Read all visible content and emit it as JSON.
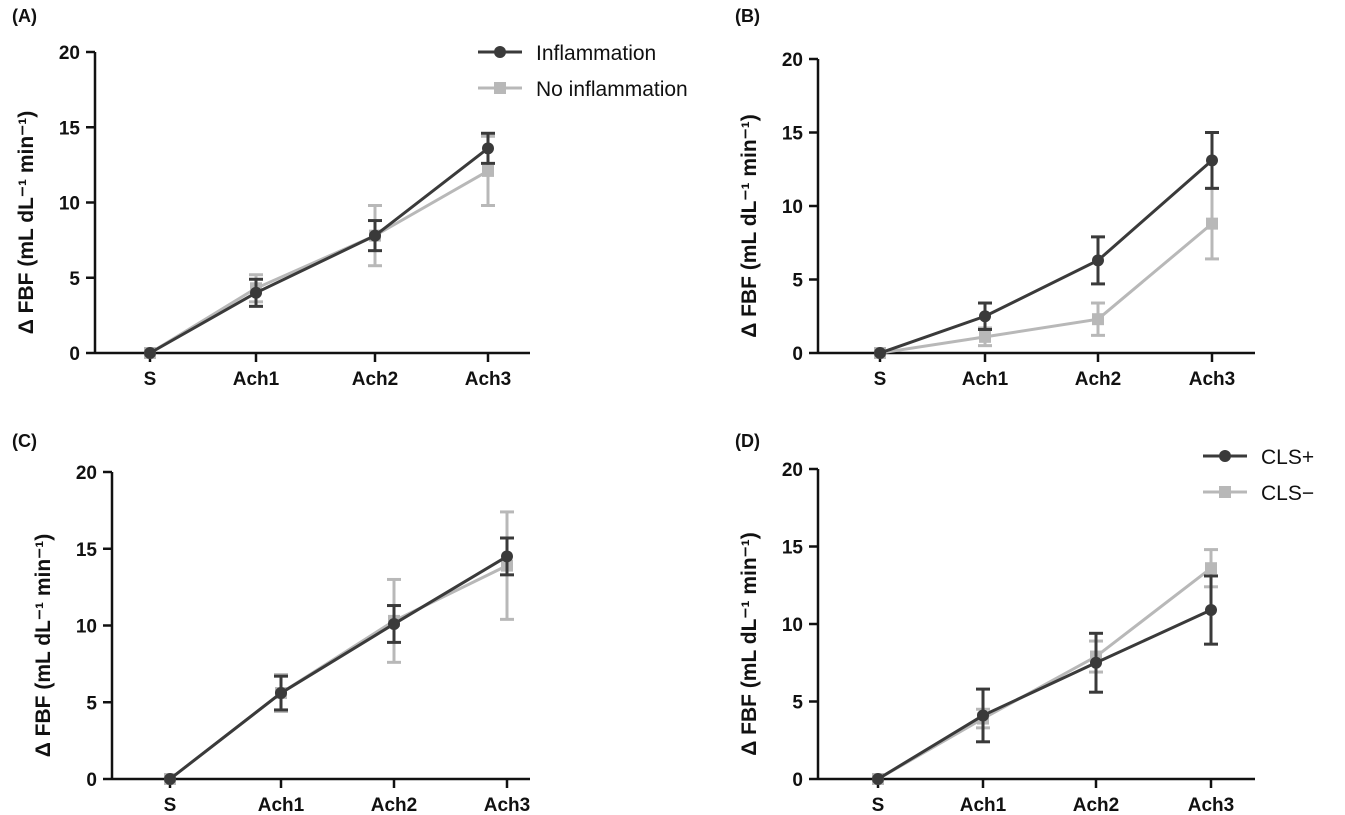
{
  "chart_data": [
    {
      "type": "line",
      "panel": "(A)",
      "categories": [
        "S",
        "Ach1",
        "Ach2",
        "Ach3"
      ],
      "ylabel": "Δ FBF (mL dL⁻¹ min⁻¹)",
      "ylim": [
        0,
        20
      ],
      "yticks": [
        0,
        5,
        10,
        15,
        20
      ],
      "legend_position": "top-right",
      "series": [
        {
          "name": "Inflammation",
          "color": "#3a3a3a",
          "marker": "circle",
          "values": [
            0,
            4.0,
            7.8,
            13.6
          ],
          "errors": [
            0,
            0.9,
            1.0,
            1.0
          ]
        },
        {
          "name": "No inflammation",
          "color": "#b8b8b8",
          "marker": "square",
          "values": [
            0,
            4.3,
            7.8,
            12.1
          ],
          "errors": [
            0,
            0.9,
            2.0,
            2.3
          ]
        }
      ]
    },
    {
      "type": "line",
      "panel": "(B)",
      "categories": [
        "S",
        "Ach1",
        "Ach2",
        "Ach3"
      ],
      "ylabel": "Δ FBF (mL dL⁻¹ min⁻¹)",
      "ylim": [
        0,
        20
      ],
      "yticks": [
        0,
        5,
        10,
        15,
        20
      ],
      "legend_position": "",
      "series": [
        {
          "name": "",
          "color": "#3a3a3a",
          "marker": "circle",
          "values": [
            0,
            2.5,
            6.3,
            13.1
          ],
          "errors": [
            0,
            0.9,
            1.6,
            1.9
          ]
        },
        {
          "name": "",
          "color": "#b8b8b8",
          "marker": "square",
          "values": [
            0,
            1.1,
            2.3,
            8.8
          ],
          "errors": [
            0,
            0.6,
            1.1,
            2.4
          ]
        }
      ]
    },
    {
      "type": "line",
      "panel": "(C)",
      "categories": [
        "S",
        "Ach1",
        "Ach2",
        "Ach3"
      ],
      "ylabel": "Δ FBF (mL dL⁻¹ min⁻¹)",
      "ylim": [
        0,
        20
      ],
      "yticks": [
        0,
        5,
        10,
        15,
        20
      ],
      "legend_position": "",
      "series": [
        {
          "name": "",
          "color": "#3a3a3a",
          "marker": "circle",
          "values": [
            0,
            5.6,
            10.1,
            14.5
          ],
          "errors": [
            0,
            1.1,
            1.2,
            1.2
          ]
        },
        {
          "name": "",
          "color": "#b8b8b8",
          "marker": "square",
          "values": [
            0,
            5.6,
            10.3,
            13.9
          ],
          "errors": [
            0,
            1.2,
            2.7,
            3.5
          ]
        }
      ]
    },
    {
      "type": "line",
      "panel": "(D)",
      "categories": [
        "S",
        "Ach1",
        "Ach2",
        "Ach3"
      ],
      "ylabel": "Δ FBF (mL dL⁻¹ min⁻¹)",
      "ylim": [
        0,
        20
      ],
      "yticks": [
        0,
        5,
        10,
        15,
        20
      ],
      "legend_position": "top-right",
      "series": [
        {
          "name": "CLS+",
          "color": "#3a3a3a",
          "marker": "circle",
          "values": [
            0,
            4.1,
            7.5,
            10.9
          ],
          "errors": [
            0,
            1.7,
            1.9,
            2.2
          ]
        },
        {
          "name": "CLS−",
          "color": "#b8b8b8",
          "marker": "square",
          "values": [
            0,
            3.9,
            7.9,
            13.6
          ],
          "errors": [
            0,
            0.6,
            1.0,
            1.2
          ]
        }
      ]
    }
  ]
}
